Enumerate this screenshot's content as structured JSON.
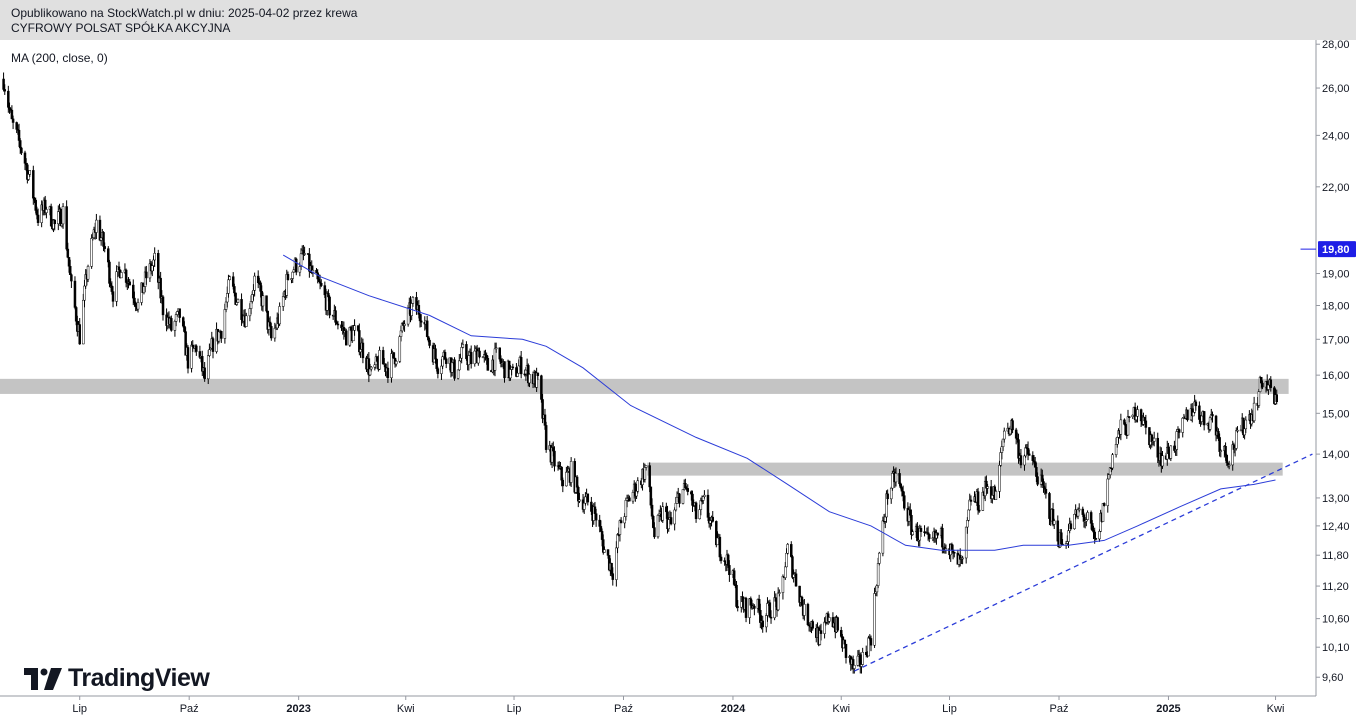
{
  "header": {
    "line1": "Opublikowano na StockWatch.pl w dniu: 2025-04-02 przez krewa",
    "line2": "CYFROWY POLSAT SPÓŁKA AKCYJNA"
  },
  "indicator_label": "MA (200, close, 0)",
  "logo": {
    "text": "TradingView",
    "icon": "tradingview-logo-icon"
  },
  "colors": {
    "candles": "#000000",
    "ma": "#2b3cd8",
    "trendline": "#2b3cd8",
    "zones": "#c4c4c4",
    "price_tag": "#1e1ee6"
  },
  "chart_data": {
    "type": "candlestick",
    "y_scale": "log",
    "ylim": [
      9.3,
      28.2
    ],
    "y_ticks": [
      {
        "value": 28,
        "label": "28,00"
      },
      {
        "value": 26,
        "label": "26,00"
      },
      {
        "value": 24,
        "label": "24,00"
      },
      {
        "value": 22,
        "label": "22,00"
      },
      {
        "value": 19,
        "label": "19,00"
      },
      {
        "value": 18,
        "label": "18,00"
      },
      {
        "value": 17,
        "label": "17,00"
      },
      {
        "value": 16,
        "label": "16,00"
      },
      {
        "value": 15,
        "label": "15,00"
      },
      {
        "value": 14,
        "label": "14,00"
      },
      {
        "value": 13,
        "label": "13,00"
      },
      {
        "value": 12.4,
        "label": "12,40"
      },
      {
        "value": 11.8,
        "label": "11,80"
      },
      {
        "value": 11.2,
        "label": "11,20"
      },
      {
        "value": 10.6,
        "label": "10,60"
      },
      {
        "value": 10.1,
        "label": "10,10"
      },
      {
        "value": 9.6,
        "label": "9,60"
      }
    ],
    "x_ticks": [
      {
        "date": "2022-07-01",
        "label": "Lip",
        "bold": false
      },
      {
        "date": "2022-10-01",
        "label": "Paź",
        "bold": false
      },
      {
        "date": "2023-01-01",
        "label": "2023",
        "bold": true
      },
      {
        "date": "2023-04-01",
        "label": "Kwi",
        "bold": false
      },
      {
        "date": "2023-07-01",
        "label": "Lip",
        "bold": false
      },
      {
        "date": "2023-10-01",
        "label": "Paź",
        "bold": false
      },
      {
        "date": "2024-01-01",
        "label": "2024",
        "bold": true
      },
      {
        "date": "2024-04-01",
        "label": "Kwi",
        "bold": false
      },
      {
        "date": "2024-07-01",
        "label": "Lip",
        "bold": false
      },
      {
        "date": "2024-10-01",
        "label": "Paź",
        "bold": false
      },
      {
        "date": "2025-01-01",
        "label": "2025",
        "bold": true
      },
      {
        "date": "2025-04-01",
        "label": "Kwi",
        "bold": false
      }
    ],
    "close_path": [
      [
        "2022-04-28",
        26.4
      ],
      [
        "2022-05-05",
        24.5
      ],
      [
        "2022-05-12",
        23.6
      ],
      [
        "2022-05-20",
        22.3
      ],
      [
        "2022-05-27",
        20.9
      ],
      [
        "2022-06-03",
        21.3
      ],
      [
        "2022-06-10",
        20.6
      ],
      [
        "2022-06-17",
        21.1
      ],
      [
        "2022-06-24",
        18.5
      ],
      [
        "2022-07-01",
        17.1
      ],
      [
        "2022-07-08",
        19.3
      ],
      [
        "2022-07-15",
        20.7
      ],
      [
        "2022-07-22",
        19.8
      ],
      [
        "2022-07-29",
        18.4
      ],
      [
        "2022-08-05",
        19.3
      ],
      [
        "2022-08-12",
        18.7
      ],
      [
        "2022-08-19",
        18.0
      ],
      [
        "2022-08-26",
        18.9
      ],
      [
        "2022-09-02",
        19.4
      ],
      [
        "2022-09-09",
        17.9
      ],
      [
        "2022-09-16",
        17.3
      ],
      [
        "2022-09-23",
        17.7
      ],
      [
        "2022-09-30",
        16.4
      ],
      [
        "2022-10-07",
        16.8
      ],
      [
        "2022-10-14",
        15.9
      ],
      [
        "2022-10-21",
        16.9
      ],
      [
        "2022-10-28",
        17.3
      ],
      [
        "2022-11-04",
        18.7
      ],
      [
        "2022-11-11",
        18.1
      ],
      [
        "2022-11-18",
        17.6
      ],
      [
        "2022-11-25",
        18.8
      ],
      [
        "2022-12-02",
        18.1
      ],
      [
        "2022-12-09",
        17.0
      ],
      [
        "2022-12-16",
        17.7
      ],
      [
        "2022-12-23",
        18.9
      ],
      [
        "2022-12-30",
        19.3
      ],
      [
        "2023-01-06",
        19.6
      ],
      [
        "2023-01-13",
        18.9
      ],
      [
        "2023-01-20",
        18.5
      ],
      [
        "2023-01-27",
        17.9
      ],
      [
        "2023-02-03",
        17.5
      ],
      [
        "2023-02-10",
        17.1
      ],
      [
        "2023-02-17",
        17.2
      ],
      [
        "2023-02-24",
        16.7
      ],
      [
        "2023-03-03",
        16.0
      ],
      [
        "2023-03-10",
        16.4
      ],
      [
        "2023-03-17",
        16.2
      ],
      [
        "2023-03-24",
        16.6
      ],
      [
        "2023-03-31",
        17.5
      ],
      [
        "2023-04-07",
        18.0
      ],
      [
        "2023-04-14",
        17.8
      ],
      [
        "2023-04-21",
        16.9
      ],
      [
        "2023-04-28",
        16.3
      ],
      [
        "2023-05-05",
        16.6
      ],
      [
        "2023-05-12",
        16.1
      ],
      [
        "2023-05-19",
        16.6
      ],
      [
        "2023-05-26",
        16.4
      ],
      [
        "2023-06-02",
        16.7
      ],
      [
        "2023-06-09",
        16.2
      ],
      [
        "2023-06-16",
        16.5
      ],
      [
        "2023-06-23",
        16.2
      ],
      [
        "2023-06-30",
        16.0
      ],
      [
        "2023-07-07",
        16.3
      ],
      [
        "2023-07-14",
        16.0
      ],
      [
        "2023-07-21",
        15.8
      ],
      [
        "2023-07-28",
        14.3
      ],
      [
        "2023-08-04",
        13.8
      ],
      [
        "2023-08-11",
        13.4
      ],
      [
        "2023-08-18",
        13.6
      ],
      [
        "2023-08-25",
        13.0
      ],
      [
        "2023-09-01",
        12.9
      ],
      [
        "2023-09-08",
        12.6
      ],
      [
        "2023-09-15",
        11.9
      ],
      [
        "2023-09-22",
        11.5
      ],
      [
        "2023-09-29",
        12.5
      ],
      [
        "2023-10-06",
        13.0
      ],
      [
        "2023-10-13",
        13.3
      ],
      [
        "2023-10-20",
        13.7
      ],
      [
        "2023-10-27",
        12.2
      ],
      [
        "2023-11-03",
        12.7
      ],
      [
        "2023-11-10",
        12.4
      ],
      [
        "2023-11-17",
        13.1
      ],
      [
        "2023-11-24",
        13.2
      ],
      [
        "2023-12-01",
        12.6
      ],
      [
        "2023-12-08",
        12.9
      ],
      [
        "2023-12-15",
        12.3
      ],
      [
        "2023-12-22",
        11.9
      ],
      [
        "2023-12-29",
        11.6
      ],
      [
        "2024-01-05",
        10.9
      ],
      [
        "2024-01-12",
        10.8
      ],
      [
        "2024-01-19",
        10.9
      ],
      [
        "2024-01-26",
        10.6
      ],
      [
        "2024-02-02",
        10.8
      ],
      [
        "2024-02-09",
        10.9
      ],
      [
        "2024-02-16",
        11.9
      ],
      [
        "2024-02-23",
        11.3
      ],
      [
        "2024-03-01",
        10.7
      ],
      [
        "2024-03-08",
        10.5
      ],
      [
        "2024-03-15",
        10.2
      ],
      [
        "2024-03-22",
        10.7
      ],
      [
        "2024-03-29",
        10.4
      ],
      [
        "2024-04-05",
        10.0
      ],
      [
        "2024-04-12",
        9.7
      ],
      [
        "2024-04-19",
        9.9
      ],
      [
        "2024-04-26",
        10.3
      ],
      [
        "2024-05-03",
        11.8
      ],
      [
        "2024-05-10",
        13.1
      ],
      [
        "2024-05-17",
        13.5
      ],
      [
        "2024-05-24",
        12.9
      ],
      [
        "2024-05-31",
        12.3
      ],
      [
        "2024-06-07",
        12.2
      ],
      [
        "2024-06-14",
        12.0
      ],
      [
        "2024-06-21",
        12.2
      ],
      [
        "2024-06-28",
        12.1
      ],
      [
        "2024-07-05",
        11.7
      ],
      [
        "2024-07-12",
        11.6
      ],
      [
        "2024-07-19",
        13.0
      ],
      [
        "2024-07-26",
        12.9
      ],
      [
        "2024-08-02",
        13.3
      ],
      [
        "2024-08-09",
        13.0
      ],
      [
        "2024-08-16",
        14.6
      ],
      [
        "2024-08-23",
        14.7
      ],
      [
        "2024-08-30",
        13.9
      ],
      [
        "2024-09-06",
        14.0
      ],
      [
        "2024-09-13",
        13.5
      ],
      [
        "2024-09-20",
        13.0
      ],
      [
        "2024-09-27",
        12.4
      ],
      [
        "2024-10-04",
        12.0
      ],
      [
        "2024-10-11",
        12.4
      ],
      [
        "2024-10-18",
        12.7
      ],
      [
        "2024-10-25",
        12.5
      ],
      [
        "2024-11-01",
        12.0
      ],
      [
        "2024-11-08",
        12.9
      ],
      [
        "2024-11-15",
        14.0
      ],
      [
        "2024-11-22",
        14.6
      ],
      [
        "2024-11-29",
        14.7
      ],
      [
        "2024-12-06",
        15.2
      ],
      [
        "2024-12-13",
        14.6
      ],
      [
        "2024-12-20",
        14.2
      ],
      [
        "2024-12-27",
        13.9
      ],
      [
        "2025-01-03",
        14.1
      ],
      [
        "2025-01-10",
        14.4
      ],
      [
        "2025-01-17",
        15.0
      ],
      [
        "2025-01-24",
        15.2
      ],
      [
        "2025-01-31",
        14.8
      ],
      [
        "2025-02-07",
        14.9
      ],
      [
        "2025-02-14",
        14.2
      ],
      [
        "2025-02-21",
        13.9
      ],
      [
        "2025-02-28",
        14.4
      ],
      [
        "2025-03-07",
        14.8
      ],
      [
        "2025-03-14",
        15.1
      ],
      [
        "2025-03-21",
        15.9
      ],
      [
        "2025-03-28",
        15.6
      ],
      [
        "2025-04-02",
        15.2
      ]
    ],
    "ma200": [
      [
        "2022-12-19",
        19.6
      ],
      [
        "2023-01-19",
        18.9
      ],
      [
        "2023-03-01",
        18.3
      ],
      [
        "2023-04-21",
        17.7
      ],
      [
        "2023-05-26",
        17.1
      ],
      [
        "2023-07-08",
        17.0
      ],
      [
        "2023-07-28",
        16.8
      ],
      [
        "2023-08-28",
        16.2
      ],
      [
        "2023-10-07",
        15.2
      ],
      [
        "2023-12-01",
        14.4
      ],
      [
        "2024-01-13",
        13.9
      ],
      [
        "2024-02-16",
        13.3
      ],
      [
        "2024-03-22",
        12.7
      ],
      [
        "2024-04-26",
        12.4
      ],
      [
        "2024-05-25",
        12.0
      ],
      [
        "2024-06-24",
        11.9
      ],
      [
        "2024-07-18",
        11.9
      ],
      [
        "2024-08-08",
        11.9
      ],
      [
        "2024-09-01",
        12.0
      ],
      [
        "2024-10-09",
        12.0
      ],
      [
        "2024-11-08",
        12.1
      ],
      [
        "2024-12-06",
        12.4
      ],
      [
        "2025-01-10",
        12.8
      ],
      [
        "2025-02-14",
        13.2
      ],
      [
        "2025-03-14",
        13.3
      ],
      [
        "2025-04-01",
        13.4
      ]
    ],
    "zones": [
      {
        "from": "2022-04-01",
        "to": "2025-04-12",
        "low": 15.5,
        "high": 15.9
      },
      {
        "from": "2023-10-21",
        "to": "2025-04-07",
        "low": 13.5,
        "high": 13.8
      }
    ],
    "trendline": {
      "from": [
        "2024-04-12",
        9.7
      ],
      "to": [
        "2025-05-02",
        14.0
      ],
      "style": "dashed"
    },
    "price_line": {
      "value": 19.8,
      "label": "19,80",
      "from": "2025-04-22"
    }
  }
}
